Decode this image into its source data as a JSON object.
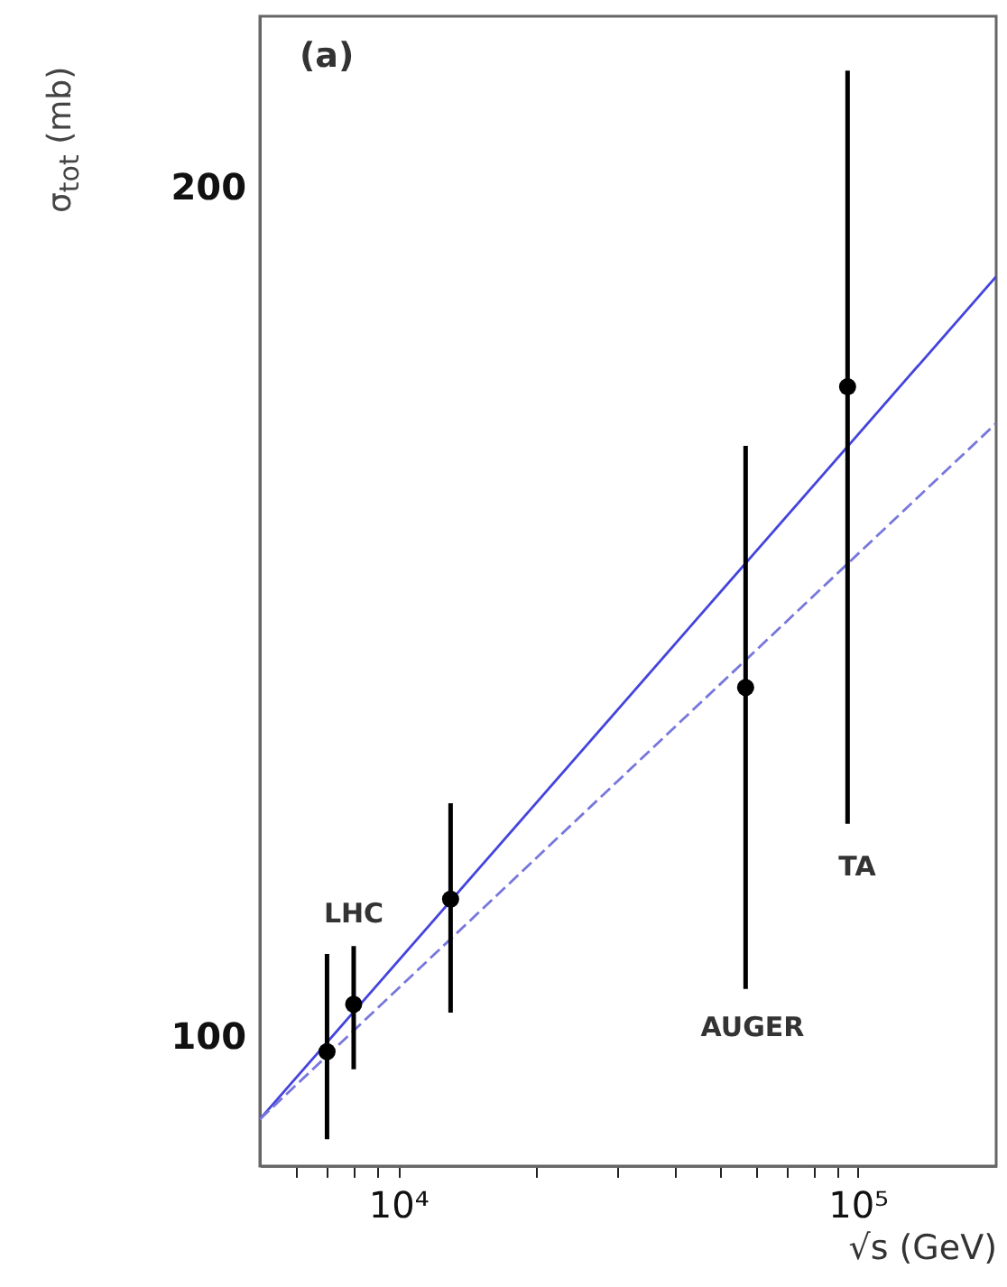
{
  "chart_data": {
    "type": "scatter",
    "xlabel": "√s (GeV)",
    "ylabel": "σ$_{tot}$ (mb)",
    "log": "xy",
    "grid": false,
    "xlim": [
      5000,
      200000
    ],
    "xticks": [
      {
        "value": 6000,
        "label": null
      },
      {
        "value": 7000,
        "label": null
      },
      {
        "value": 8000,
        "label": null
      },
      {
        "value": 9000,
        "label": null
      },
      {
        "value": 10000,
        "label": "10⁴"
      },
      {
        "value": 20000,
        "label": null
      },
      {
        "value": 30000,
        "label": null
      },
      {
        "value": 40000,
        "label": null
      },
      {
        "value": 50000,
        "label": null
      },
      {
        "value": 60000,
        "label": null
      },
      {
        "value": 70000,
        "label": null
      },
      {
        "value": 80000,
        "label": null
      },
      {
        "value": 90000,
        "label": null
      },
      {
        "value": 100000,
        "label": "10⁵"
      }
    ],
    "ylim": [
      90,
      230
    ],
    "yticks": [
      100,
      200
    ],
    "series": [
      {
        "color": "#000000",
        "marker": "circle",
        "x": [
          7000,
          8000,
          13000,
          57000,
          95000
        ],
        "values": [
          98.8,
          102.7,
          111.9,
          133,
          170
        ],
        "errors": [
          [
            92,
            107
          ],
          [
            97.4,
            107.7
          ],
          [
            102,
            121
          ],
          [
            104,
            162
          ],
          [
            119,
            220
          ]
        ]
      },
      {
        "type": "line",
        "color": "#4444dd",
        "line_style": "solid",
        "marker": "none",
        "x": [
          5000,
          200000
        ],
        "values": [
          93.5,
          186
        ]
      },
      {
        "type": "line",
        "color": "#7777dd",
        "line_style": "dashed",
        "marker": "none",
        "x": [
          5000,
          200000
        ],
        "values": [
          93.5,
          165
        ]
      }
    ],
    "annotations": [
      "(a)",
      "LHC",
      "AUGER",
      "TA"
    ]
  }
}
